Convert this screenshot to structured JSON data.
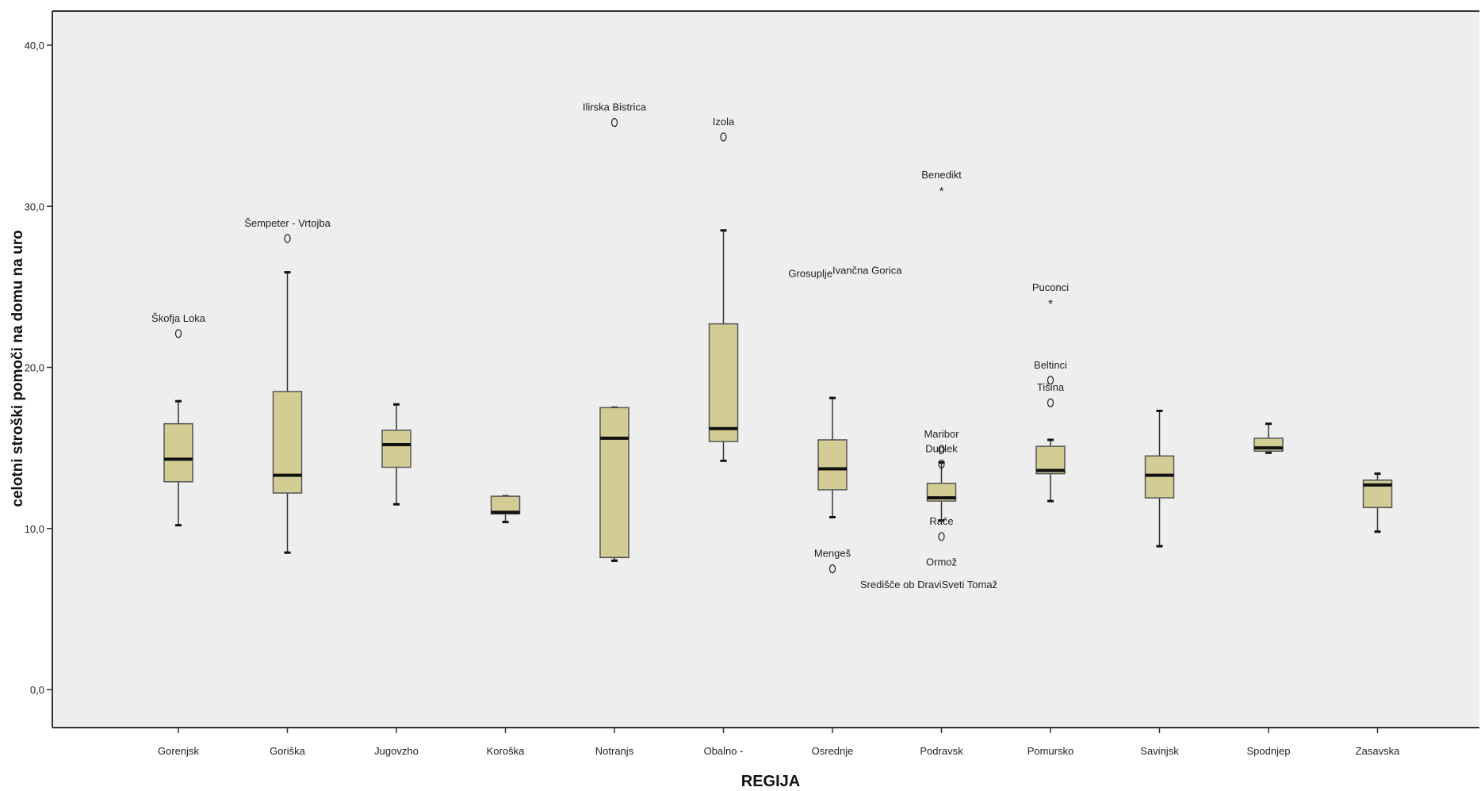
{
  "chart_data": {
    "type": "boxplot",
    "title": "",
    "xlabel": "REGIJA",
    "ylabel": "celotni stroški pomoči na domu na uro",
    "ylim": [
      0,
      40
    ],
    "yticks": [
      {
        "value": 0,
        "label": "0,0"
      },
      {
        "value": 10,
        "label": "10,0"
      },
      {
        "value": 20,
        "label": "20,0"
      },
      {
        "value": 30,
        "label": "30,0"
      },
      {
        "value": 40,
        "label": "40,0"
      }
    ],
    "grid": false,
    "colors": {
      "box_fill": "#d3cd95",
      "box_stroke": "#555555",
      "median": "#111111",
      "plot_bg": "#eeeeee"
    },
    "categories": [
      "Gorenjsk",
      "Goriška",
      "Jugovzho",
      "Koroška",
      "Notranjs",
      "Obalno -",
      "Osrednje",
      "Podravsk",
      "Pomursko",
      "Savinjsk",
      "Spodnjep",
      "Zasavska"
    ],
    "boxes": [
      {
        "category": "Gorenjsk",
        "low": 10.2,
        "q1": 12.9,
        "median": 14.3,
        "q3": 16.5,
        "high": 17.9
      },
      {
        "category": "Goriška",
        "low": 8.5,
        "q1": 12.2,
        "median": 13.3,
        "q3": 18.5,
        "high": 25.9
      },
      {
        "category": "Jugovzho",
        "low": 11.5,
        "q1": 13.8,
        "median": 15.2,
        "q3": 16.1,
        "high": 17.7
      },
      {
        "category": "Koroška",
        "low": 10.4,
        "q1": 10.9,
        "median": 11.0,
        "q3": 12.0,
        "high": 12.0
      },
      {
        "category": "Notranjs",
        "low": 8.0,
        "q1": 8.2,
        "median": 15.6,
        "q3": 17.5,
        "high": 17.5
      },
      {
        "category": "Obalno -",
        "low": 14.2,
        "q1": 15.4,
        "median": 16.2,
        "q3": 22.7,
        "high": 28.5
      },
      {
        "category": "Osrednje",
        "low": 10.7,
        "q1": 12.4,
        "median": 13.7,
        "q3": 15.5,
        "high": 18.1
      },
      {
        "category": "Podravsk",
        "low": 10.5,
        "q1": 11.7,
        "median": 11.9,
        "q3": 12.8,
        "high": 14.1
      },
      {
        "category": "Pomursko",
        "low": 11.7,
        "q1": 13.4,
        "median": 13.6,
        "q3": 15.1,
        "high": 15.5
      },
      {
        "category": "Savinjsk",
        "low": 8.9,
        "q1": 11.9,
        "median": 13.3,
        "q3": 14.5,
        "high": 17.3
      },
      {
        "category": "Spodnjep",
        "low": 14.7,
        "q1": 14.8,
        "median": 15.0,
        "q3": 15.6,
        "high": 16.5
      },
      {
        "category": "Zasavska",
        "low": 9.8,
        "q1": 11.3,
        "median": 12.7,
        "q3": 13.0,
        "high": 13.4
      }
    ],
    "outliers": [
      {
        "category": "Gorenjsk",
        "value": 22.1,
        "symbol": "o",
        "label": "Škofja Loka"
      },
      {
        "category": "Goriška",
        "value": 28.0,
        "symbol": "o",
        "label": "Šempeter - Vrtojba"
      },
      {
        "category": "Notranjs",
        "value": 35.2,
        "symbol": "o",
        "label": "Ilirska Bistrica"
      },
      {
        "category": "Obalno -",
        "value": 34.3,
        "symbol": "o",
        "label": "Izola"
      },
      {
        "category": "Osrednje",
        "value": 7.5,
        "symbol": "o",
        "label": "Mengeš"
      },
      {
        "category": "Podravsk",
        "value": 31.0,
        "symbol": "*",
        "label": "Benedikt"
      },
      {
        "category": "Podravsk",
        "value": 14.9,
        "symbol": "o",
        "label": "Maribor"
      },
      {
        "category": "Podravsk",
        "value": 14.0,
        "symbol": "o",
        "label": "Duplek"
      },
      {
        "category": "Podravsk",
        "value": 9.5,
        "symbol": "o",
        "label": "Rače"
      },
      {
        "category": "Pomursko",
        "value": 24.0,
        "symbol": "*",
        "label": "Puconci"
      },
      {
        "category": "Pomursko",
        "value": 19.2,
        "symbol": "o",
        "label": "Beltinci"
      },
      {
        "category": "Pomursko",
        "value": 17.8,
        "symbol": "o",
        "label": "Tišina"
      }
    ],
    "annotations": [
      {
        "text": "Grosuplje",
        "category": "Osrednje",
        "value": 25.6,
        "anchor": "end"
      },
      {
        "text": "Ivančna Gorica",
        "category": "Osrednje",
        "value": 25.8,
        "anchor": "start"
      },
      {
        "text": "Ormož",
        "category": "Podravsk",
        "value": 7.7,
        "anchor": "middle"
      },
      {
        "text": "Središče ob Dravi",
        "category": "Podravsk",
        "value": 6.3,
        "anchor": "end"
      },
      {
        "text": "Sveti Tomaž",
        "category": "Podravsk",
        "value": 6.3,
        "anchor": "start"
      }
    ]
  }
}
